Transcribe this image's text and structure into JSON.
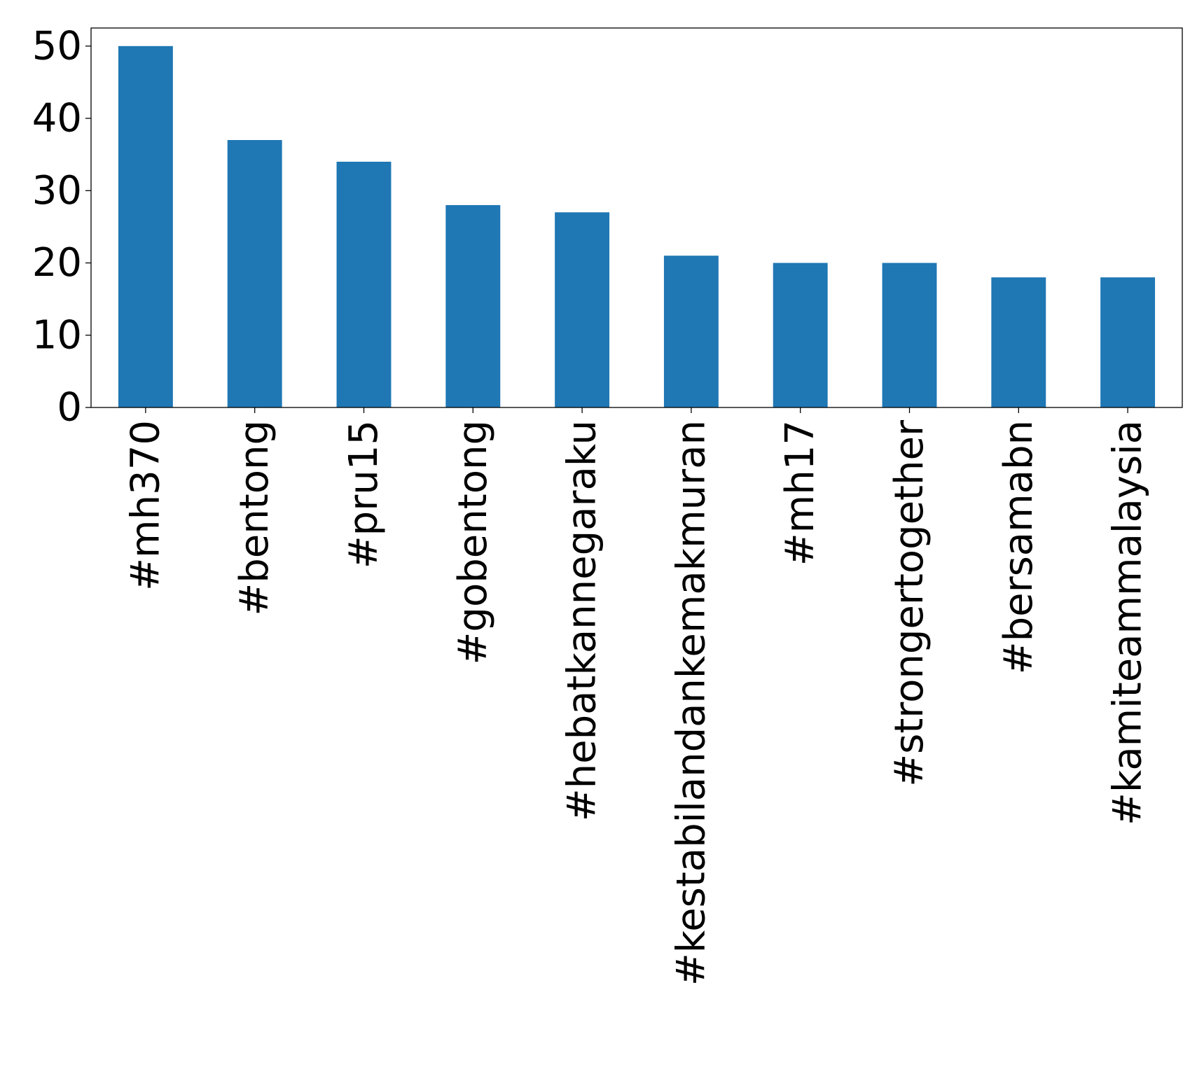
{
  "chart_data": {
    "type": "bar",
    "title": "",
    "xlabel": "",
    "ylabel": "",
    "categories": [
      "#mh370",
      "#bentong",
      "#pru15",
      "#gobentong",
      "#hebatkannegaraku",
      "#kestabilandankemakmuran",
      "#mh17",
      "#strongertogether",
      "#bersamabn",
      "#kamiteammalaysia"
    ],
    "values": [
      50,
      37,
      34,
      28,
      27,
      21,
      20,
      20,
      18,
      18
    ],
    "ylim": [
      0,
      52.5
    ],
    "yticks": [
      0,
      10,
      20,
      30,
      40,
      50
    ],
    "ytick_labels": [
      "0",
      "10",
      "20",
      "30",
      "40",
      "50"
    ],
    "grid": false,
    "bar_color": "#1f77b4"
  }
}
